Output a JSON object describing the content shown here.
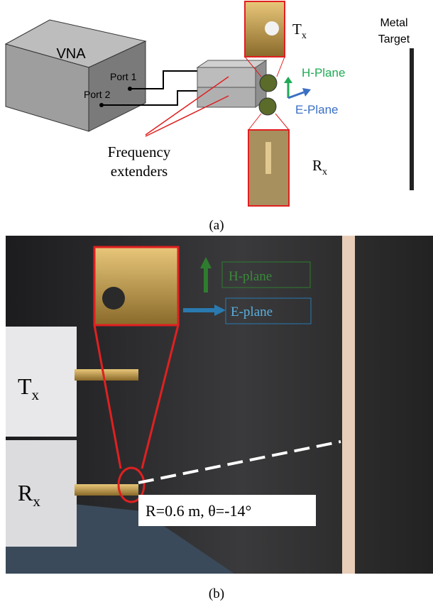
{
  "panel_a": {
    "vna": "VNA",
    "port1": "Port 1",
    "port2": "Port 2",
    "extenders": [
      "Frequency",
      "extenders"
    ],
    "tx": {
      "main": "T",
      "sub": "x"
    },
    "rx": {
      "main": "R",
      "sub": "x"
    },
    "h_plane": "H-Plane",
    "e_plane": "E-Plane",
    "target": [
      "Metal",
      "Target"
    ],
    "caption": "(a)"
  },
  "panel_b": {
    "h_plane": "H-plane",
    "e_plane": "E-plane",
    "tx": {
      "main": "T",
      "sub": "x"
    },
    "rx": {
      "main": "R",
      "sub": "x"
    },
    "geometry": "R=0.6 m, θ=-14°",
    "caption": "(b)"
  }
}
